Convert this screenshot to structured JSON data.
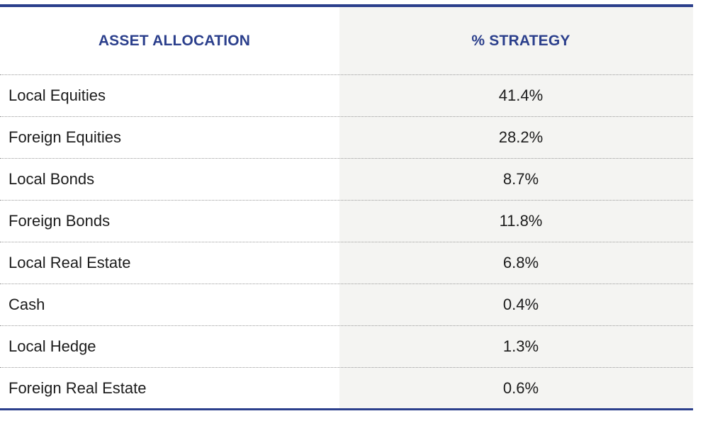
{
  "table": {
    "headers": {
      "asset": "ASSET ALLOCATION",
      "strategy": "% STRATEGY"
    },
    "rows": [
      {
        "asset": "Local Equities",
        "strategy": "41.4%"
      },
      {
        "asset": "Foreign Equities",
        "strategy": "28.2%"
      },
      {
        "asset": "Local Bonds",
        "strategy": "8.7%"
      },
      {
        "asset": "Foreign Bonds",
        "strategy": "11.8%"
      },
      {
        "asset": "Local Real Estate",
        "strategy": "6.8%"
      },
      {
        "asset": "Cash",
        "strategy": "0.4%"
      },
      {
        "asset": "Local Hedge",
        "strategy": "1.3%"
      },
      {
        "asset": "Foreign Real Estate",
        "strategy": "0.6%"
      }
    ]
  },
  "colors": {
    "accent": "#2b3f8c",
    "shaded_column": "#f4f4f2",
    "text": "#1c1c1c"
  }
}
